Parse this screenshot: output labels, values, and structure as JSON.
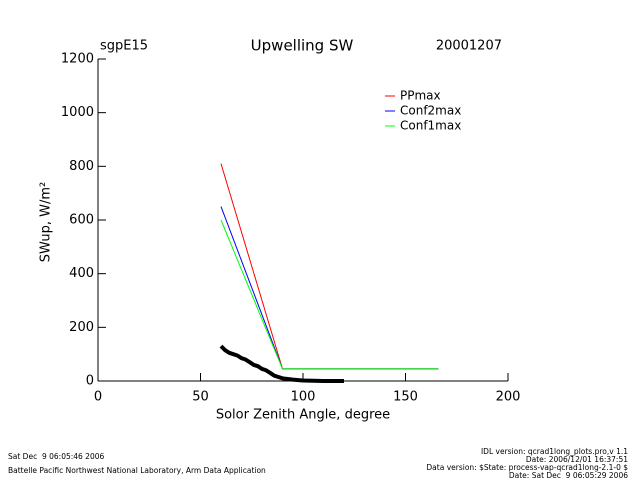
{
  "chart_data": {
    "type": "line",
    "site": "sgpE15",
    "title": "Upwelling SW",
    "date": "20001207",
    "xlabel": "Solor Zenith Angle, degree",
    "ylabel": "SWup, W/m²",
    "xlim": [
      0,
      200
    ],
    "xticks": [
      0,
      50,
      100,
      150,
      200
    ],
    "ylim": [
      0,
      1200
    ],
    "yticks": [
      0,
      200,
      400,
      600,
      800,
      1000,
      1200
    ],
    "series": [
      {
        "name": "PPmax",
        "color": "#ff0000",
        "x": [
          60,
          90,
          166
        ],
        "values": [
          810,
          45,
          45
        ]
      },
      {
        "name": "Conf2max",
        "color": "#0000ff",
        "x": [
          60,
          90,
          166
        ],
        "values": [
          650,
          45,
          45
        ]
      },
      {
        "name": "Conf1max",
        "color": "#00ff00",
        "x": [
          60,
          90,
          166
        ],
        "values": [
          600,
          45,
          45
        ]
      },
      {
        "color": "#000000",
        "x": [
          60,
          62,
          64,
          66,
          68,
          70,
          72,
          74,
          76,
          78,
          80,
          82,
          84,
          86,
          88,
          90,
          95,
          100,
          110,
          120
        ],
        "values": [
          130,
          115,
          105,
          100,
          95,
          85,
          80,
          70,
          60,
          55,
          45,
          40,
          30,
          20,
          15,
          10,
          5,
          2,
          0,
          0
        ]
      }
    ],
    "footer_left": [
      "Sat Dec  9 06:05:46 2006",
      "Battelle Pacific Northwest National Laboratory, Arm Data Application"
    ],
    "footer_right": [
      "IDL version: qcrad1long_plots.pro,v 1.1",
      "Date: 2006/12/01 16:37:51",
      "Data version: $State: process-vap-qcrad1long-2.1-0 $",
      "Date: Sat Dec  9 06:05:29 2006"
    ]
  }
}
